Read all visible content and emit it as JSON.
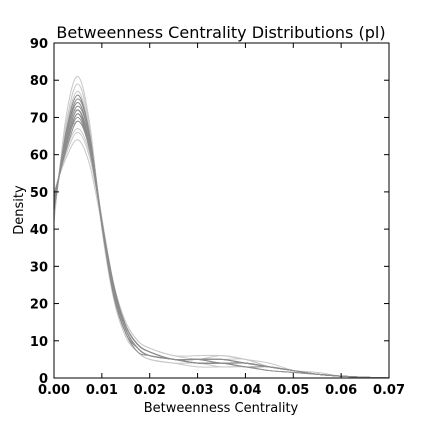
{
  "chart_data": {
    "type": "line",
    "title": "Betweenness Centrality Distributions (pl)",
    "xlabel": "Betweenness Centrality",
    "ylabel": "Density",
    "xlim": [
      0,
      0.07
    ],
    "ylim": [
      0,
      90
    ],
    "xticks": [
      0,
      0.01,
      0.02,
      0.03,
      0.04,
      0.05,
      0.06,
      0.07
    ],
    "xtick_labels": [
      "0.00",
      "0.01",
      "0.02",
      "0.03",
      "0.04",
      "0.05",
      "0.06",
      "0.07"
    ],
    "yticks": [
      0,
      10,
      20,
      30,
      40,
      50,
      60,
      70,
      80,
      90
    ],
    "ytick_labels": [
      "0",
      "10",
      "20",
      "30",
      "40",
      "50",
      "60",
      "70",
      "80",
      "90"
    ],
    "grid": false,
    "colors": {
      "light_series": "#c8c8c8",
      "dark_series": "#8c8c8c"
    },
    "x": [
      0,
      0.0025,
      0.005,
      0.0075,
      0.01,
      0.0125,
      0.015,
      0.0175,
      0.02,
      0.025,
      0.03,
      0.035,
      0.04,
      0.045,
      0.05,
      0.055,
      0.06,
      0.065,
      0.07
    ],
    "series": [
      {
        "values": [
          42,
          70,
          81,
          68,
          40,
          21,
          11,
          7,
          5,
          4,
          4,
          3,
          3,
          2,
          1.5,
          1,
          0.5,
          0.2,
          0
        ],
        "shade": "light"
      },
      {
        "values": [
          44,
          67,
          77,
          66,
          42,
          23,
          13,
          8,
          6,
          5,
          4,
          4,
          3,
          2,
          1.5,
          1,
          0.5,
          0.2,
          0
        ],
        "shade": "light"
      },
      {
        "values": [
          46,
          64,
          74,
          64,
          43,
          24,
          14,
          9,
          7,
          5,
          5,
          5,
          4,
          3,
          2,
          1,
          0.5,
          0.2,
          0
        ],
        "shade": "light"
      },
      {
        "values": [
          48,
          61,
          67,
          60,
          42,
          25,
          15,
          10,
          8,
          6,
          5,
          5,
          5,
          3,
          2,
          1,
          0.5,
          0.2,
          0
        ],
        "shade": "light"
      },
      {
        "values": [
          50,
          59,
          64,
          57,
          41,
          25,
          15,
          10,
          8,
          6,
          6,
          6,
          5,
          4,
          2,
          1,
          0.5,
          0.2,
          0
        ],
        "shade": "light"
      },
      {
        "values": [
          45,
          66,
          72,
          63,
          42,
          23,
          13,
          8,
          6,
          5,
          4,
          4,
          3,
          3,
          2,
          1,
          0.5,
          0.2,
          0
        ],
        "shade": "light"
      },
      {
        "values": [
          43,
          68,
          79,
          67,
          41,
          22,
          12,
          7,
          5,
          4,
          3,
          3,
          3,
          2,
          1.5,
          1,
          0.5,
          0.2,
          0
        ],
        "shade": "light"
      },
      {
        "values": [
          47,
          63,
          69,
          62,
          43,
          25,
          14,
          9,
          7,
          5,
          5,
          6,
          5,
          3,
          2,
          1,
          0.5,
          0.2,
          0
        ],
        "shade": "light"
      },
      {
        "values": [
          49,
          60,
          66,
          59,
          42,
          25,
          14,
          9,
          7,
          5,
          5,
          5,
          4,
          3,
          2,
          1.5,
          0.5,
          0.2,
          0
        ],
        "shade": "light"
      },
      {
        "values": [
          44,
          66,
          76,
          65,
          41,
          22,
          12,
          8,
          6,
          5,
          4,
          4,
          3,
          2,
          1.5,
          1,
          0.5,
          0.2,
          0
        ],
        "shade": "light"
      },
      {
        "values": [
          45,
          66,
          76,
          65,
          41,
          22,
          12,
          7,
          6,
          5,
          4,
          4,
          3,
          2,
          1.5,
          1,
          0.5,
          0.2,
          0
        ],
        "shade": "dark"
      },
      {
        "values": [
          46,
          65,
          74,
          64,
          42,
          23,
          13,
          8,
          6,
          5,
          4,
          4,
          4,
          3,
          2,
          1,
          0.5,
          0.2,
          0
        ],
        "shade": "dark"
      },
      {
        "values": [
          47,
          63,
          72,
          63,
          42,
          24,
          13,
          8,
          6,
          5,
          4,
          4,
          4,
          3,
          2,
          1,
          0.5,
          0.2,
          0
        ],
        "shade": "dark"
      },
      {
        "values": [
          48,
          62,
          71,
          62,
          42,
          24,
          14,
          9,
          7,
          5,
          5,
          4,
          4,
          3,
          2,
          1,
          0.5,
          0.2,
          0
        ],
        "shade": "dark"
      },
      {
        "values": [
          48,
          62,
          70,
          61,
          42,
          24,
          14,
          9,
          7,
          5,
          5,
          5,
          4,
          3,
          2,
          1,
          0.5,
          0.2,
          0
        ],
        "shade": "dark"
      },
      {
        "values": [
          49,
          61,
          69,
          61,
          42,
          25,
          14,
          9,
          7,
          5,
          5,
          5,
          4,
          3,
          2,
          1,
          0.5,
          0.2,
          0
        ],
        "shade": "dark"
      },
      {
        "values": [
          46,
          64,
          73,
          64,
          42,
          23,
          13,
          8,
          6,
          5,
          4,
          4,
          4,
          3,
          2,
          1,
          0.5,
          0.2,
          0
        ],
        "shade": "dark"
      },
      {
        "values": [
          47,
          63,
          72,
          62,
          42,
          24,
          14,
          9,
          7,
          5,
          5,
          5,
          4,
          3,
          2,
          1,
          0.5,
          0.2,
          0
        ],
        "shade": "dark"
      },
      {
        "values": [
          45,
          65,
          75,
          65,
          41,
          22,
          12,
          8,
          6,
          5,
          4,
          4,
          3,
          3,
          2,
          1,
          0.5,
          0.2,
          0
        ],
        "shade": "dark"
      },
      {
        "values": [
          48,
          62,
          71,
          61,
          42,
          24,
          14,
          9,
          7,
          5,
          5,
          4,
          4,
          3,
          2,
          1,
          0.5,
          0.2,
          0
        ],
        "shade": "dark"
      }
    ]
  }
}
